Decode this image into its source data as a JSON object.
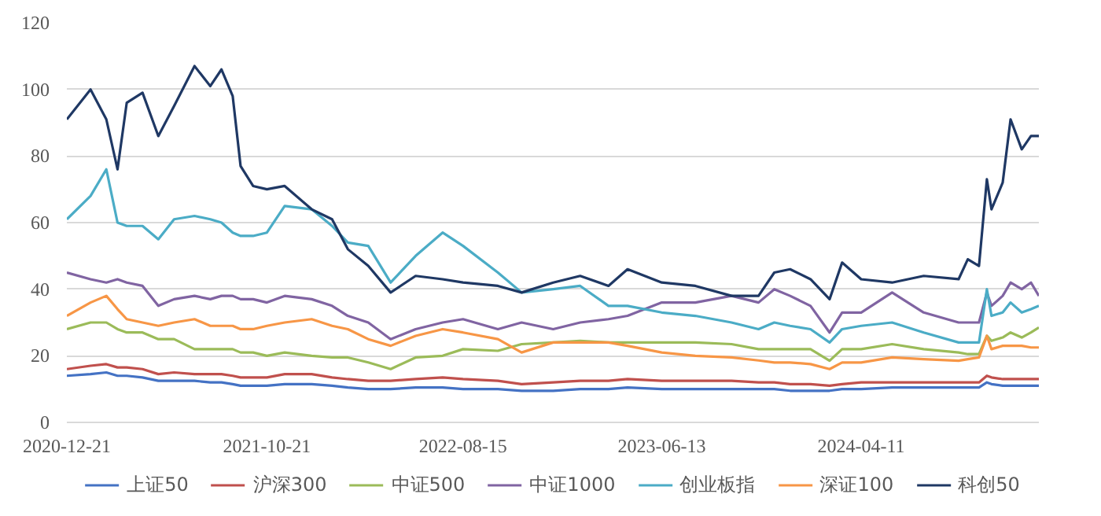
{
  "chart_data": {
    "type": "line",
    "x": [
      "2020-12-21",
      "2021-01-26",
      "2021-02-19",
      "2021-03-08",
      "2021-03-22",
      "2021-04-15",
      "2021-05-09",
      "2021-06-02",
      "2021-07-03",
      "2021-07-27",
      "2021-08-13",
      "2021-08-30",
      "2021-09-11",
      "2021-09-30",
      "2021-10-21",
      "2021-11-17",
      "2021-12-28",
      "2022-01-28",
      "2022-02-21",
      "2022-03-24",
      "2022-04-27",
      "2022-06-04",
      "2022-07-15",
      "2022-08-15",
      "2022-10-07",
      "2022-11-12",
      "2022-12-30",
      "2023-02-09",
      "2023-03-24",
      "2023-04-22",
      "2023-06-13",
      "2023-08-03",
      "2023-09-27",
      "2023-11-07",
      "2023-12-01",
      "2023-12-25",
      "2024-01-25",
      "2024-02-23",
      "2024-03-13",
      "2024-04-11",
      "2024-05-28",
      "2024-07-15",
      "2024-09-06",
      "2024-09-20",
      "2024-10-07",
      "2024-10-19",
      "2024-10-26",
      "2024-11-12",
      "2024-11-24",
      "2024-12-11",
      "2024-12-25",
      "2025-01-06"
    ],
    "series": [
      {
        "name": "上证50",
        "color": "#4472c4",
        "values": [
          14,
          14.5,
          15,
          14,
          14,
          13.5,
          12.5,
          12.5,
          12.5,
          12,
          12,
          11.5,
          11,
          11,
          11,
          11.5,
          11.5,
          11,
          10.5,
          10,
          10,
          10.5,
          10.5,
          10,
          10,
          9.5,
          9.5,
          10,
          10,
          10.5,
          10,
          10,
          10,
          10,
          10,
          9.5,
          9.5,
          9.5,
          10,
          10,
          10.5,
          10.5,
          10.5,
          10.5,
          10.5,
          12,
          11.5,
          11,
          11,
          11,
          11,
          11
        ]
      },
      {
        "name": "沪深300",
        "color": "#c0504d",
        "values": [
          16,
          17,
          17.5,
          16.5,
          16.5,
          16,
          14.5,
          15,
          14.5,
          14.5,
          14.5,
          14,
          13.5,
          13.5,
          13.5,
          14.5,
          14.5,
          13.5,
          13,
          12.5,
          12.5,
          13,
          13.5,
          13,
          12.5,
          11.5,
          12,
          12.5,
          12.5,
          13,
          12.5,
          12.5,
          12.5,
          12,
          12,
          11.5,
          11.5,
          11,
          11.5,
          12,
          12,
          12,
          12,
          12,
          12,
          14,
          13.5,
          13,
          13,
          13,
          13,
          13
        ]
      },
      {
        "name": "中证500",
        "color": "#9bbb59",
        "values": [
          28,
          30,
          30,
          28,
          27,
          27,
          25,
          25,
          22,
          22,
          22,
          22,
          21,
          21,
          20,
          21,
          20,
          19.5,
          19.5,
          18,
          16,
          19.5,
          20,
          22,
          21.5,
          23.5,
          24,
          24.5,
          24,
          24,
          24,
          24,
          23.5,
          22,
          22,
          22,
          22,
          18.5,
          22,
          22,
          23.5,
          22,
          21,
          20.5,
          20.5,
          26,
          24.5,
          25.5,
          27,
          25.5,
          27,
          28.5
        ]
      },
      {
        "name": "中证1000",
        "color": "#8064a2",
        "values": [
          45,
          43,
          42,
          43,
          42,
          41,
          35,
          37,
          38,
          37,
          38,
          38,
          37,
          37,
          36,
          38,
          37,
          35,
          32,
          30,
          25,
          28,
          30,
          31,
          28,
          30,
          28,
          30,
          31,
          32,
          36,
          36,
          38,
          36,
          40,
          38,
          35,
          27,
          33,
          33,
          39,
          33,
          30,
          30,
          30,
          39,
          35,
          38,
          42,
          40,
          42,
          38
        ]
      },
      {
        "name": "创业板指",
        "color": "#4bacc6",
        "values": [
          61,
          68,
          76,
          60,
          59,
          59,
          55,
          61,
          62,
          61,
          60,
          57,
          56,
          56,
          57,
          65,
          64,
          59,
          54,
          53,
          42,
          50,
          57,
          53,
          45,
          39,
          40,
          41,
          35,
          35,
          33,
          32,
          30,
          28,
          30,
          29,
          28,
          24,
          28,
          29,
          30,
          27,
          24,
          24,
          24,
          40,
          32,
          33,
          36,
          33,
          34,
          35
        ]
      },
      {
        "name": "深证100",
        "color": "#f79646",
        "values": [
          32,
          36,
          38,
          34,
          31,
          30,
          29,
          30,
          31,
          29,
          29,
          29,
          28,
          28,
          29,
          30,
          31,
          29,
          28,
          25,
          23,
          26,
          28,
          27,
          25,
          21,
          24,
          24,
          24,
          23,
          21,
          20,
          19.5,
          18.6,
          18,
          18,
          17.5,
          16,
          18,
          18,
          19.5,
          19,
          18.5,
          19,
          19.5,
          26,
          22,
          23,
          23,
          23,
          22.5,
          22.5
        ]
      },
      {
        "name": "科创50",
        "color": "#1f3864",
        "values": [
          91,
          100,
          91,
          76,
          96,
          99,
          86,
          95,
          107,
          101,
          106,
          98,
          77,
          71,
          70,
          71,
          64,
          61,
          52,
          47,
          39,
          44,
          43,
          42,
          41,
          39,
          42,
          44,
          41,
          46,
          42,
          41,
          38,
          38,
          45,
          46,
          43,
          37,
          48,
          43,
          42,
          44,
          43,
          49,
          47,
          73,
          64,
          72,
          91,
          82,
          86,
          86
        ]
      }
    ],
    "xlim": [
      "2020-12-21",
      "2025-01-06"
    ],
    "xticks": [
      "2020-12-21",
      "2021-10-21",
      "2022-08-15",
      "2023-06-13",
      "2024-04-11"
    ],
    "ylim": [
      0,
      120
    ],
    "yticks": [
      0,
      20,
      40,
      60,
      80,
      100,
      120
    ],
    "grid": "y",
    "legend": "bottom",
    "marker": "none",
    "line_style": "solid"
  }
}
